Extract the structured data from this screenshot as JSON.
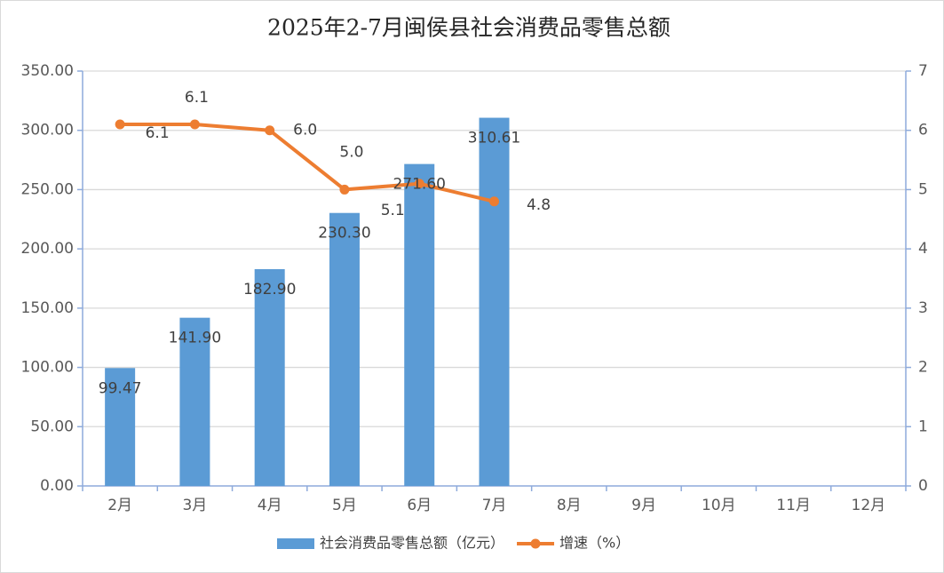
{
  "chart_data": {
    "type": "bar",
    "title": "2025年2-7月闽侯县社会消费品零售总额",
    "categories": [
      "2月",
      "3月",
      "4月",
      "5月",
      "6月",
      "7月",
      "8月",
      "9月",
      "10月",
      "11月",
      "12月"
    ],
    "series": [
      {
        "name": "社会消费品零售总额（亿元）",
        "color": "#5b9bd5",
        "type": "bar",
        "values": [
          99.47,
          141.9,
          182.9,
          230.3,
          271.6,
          310.61,
          null,
          null,
          null,
          null,
          null
        ],
        "value_labels": [
          "99.47",
          "141.90",
          "182.90",
          "230.30",
          "271.60",
          "310.61",
          null,
          null,
          null,
          null,
          null
        ]
      },
      {
        "name": "增速（%）",
        "color": "#ed7d31",
        "type": "line",
        "axis": "y2",
        "values": [
          6.1,
          6.1,
          6.0,
          5.0,
          5.1,
          4.8,
          null,
          null,
          null,
          null,
          null
        ],
        "value_labels": [
          "6.1",
          "6.1",
          "6.0",
          "5.0",
          "5.1",
          "4.8",
          null,
          null,
          null,
          null,
          null
        ]
      }
    ],
    "ylim": [
      0,
      350
    ],
    "yticks": [
      {
        "value": 0,
        "label": "0.00"
      },
      {
        "value": 50,
        "label": "50.00"
      },
      {
        "value": 100,
        "label": "100.00"
      },
      {
        "value": 150,
        "label": "150.00"
      },
      {
        "value": 200,
        "label": "200.00"
      },
      {
        "value": 250,
        "label": "250.00"
      },
      {
        "value": 300,
        "label": "300.00"
      },
      {
        "value": 350,
        "label": "350.00"
      }
    ],
    "y2lim": [
      0,
      7
    ],
    "y2ticks": [
      0,
      1,
      2,
      3,
      4,
      5,
      6,
      7
    ],
    "grid": true,
    "legend": "bottom"
  }
}
